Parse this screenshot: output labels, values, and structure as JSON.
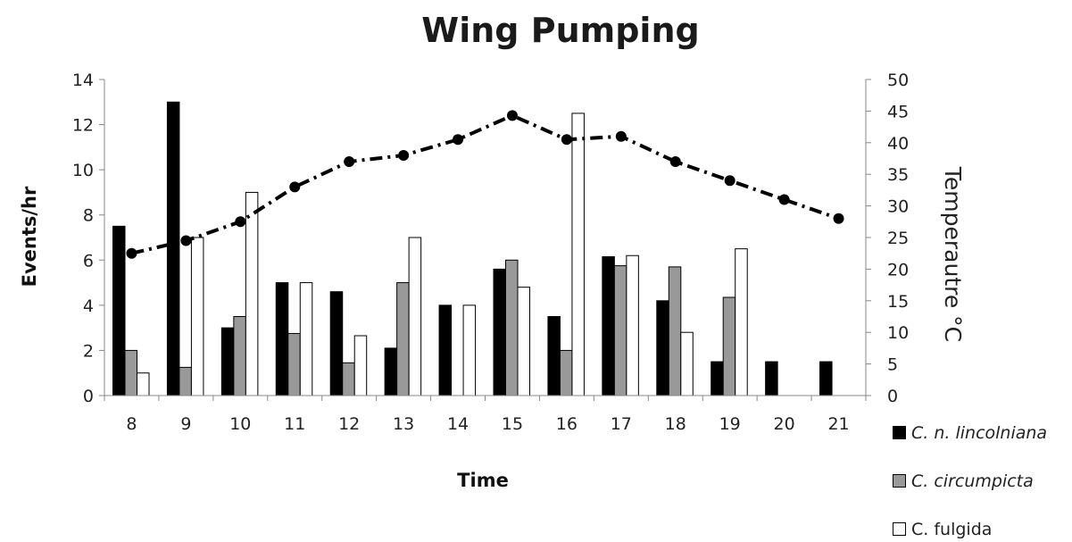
{
  "chart_data": {
    "type": "bar",
    "title": "Wing Pumping",
    "xlabel": "Time",
    "ylabel": "Events/hr",
    "y2label": "Temperautre °C",
    "ylim": [
      0,
      14
    ],
    "y2lim": [
      0,
      50
    ],
    "yticks": [
      "0",
      "2",
      "4",
      "6",
      "8",
      "10",
      "12",
      "14"
    ],
    "y2ticks": [
      "0",
      "5",
      "10",
      "15",
      "20",
      "25",
      "30",
      "35",
      "40",
      "45",
      "50"
    ],
    "categories": [
      "8",
      "9",
      "10",
      "11",
      "12",
      "13",
      "14",
      "15",
      "16",
      "17",
      "18",
      "19",
      "20",
      "21"
    ],
    "series": [
      {
        "name": "C. n. lincolniana",
        "italic": true,
        "color": "#000000",
        "values": [
          7.5,
          13,
          3,
          5,
          4.6,
          2.1,
          4,
          5.6,
          3.5,
          6.15,
          4.2,
          1.5,
          1.5,
          1.5
        ]
      },
      {
        "name": "C. circumpicta",
        "italic": true,
        "color": "#999999",
        "values": [
          2,
          1.25,
          3.5,
          2.75,
          1.45,
          5,
          null,
          6,
          2,
          5.75,
          5.7,
          4.35,
          null,
          null
        ]
      },
      {
        "name": "C. fulgida",
        "italic": false,
        "color": "#ffffff",
        "values": [
          1,
          7,
          9,
          5,
          2.65,
          7,
          4,
          4.8,
          12.5,
          6.2,
          2.8,
          6.5,
          null,
          null
        ]
      }
    ],
    "temperature": {
      "axis": "right",
      "style": "dashed line with circle markers",
      "color": "#000000",
      "values": [
        22.5,
        24.5,
        27.5,
        33,
        37,
        38,
        40.5,
        44.3,
        40.5,
        41,
        37,
        34,
        31,
        28
      ]
    },
    "legend_position": "bottom-right",
    "grid": false
  }
}
